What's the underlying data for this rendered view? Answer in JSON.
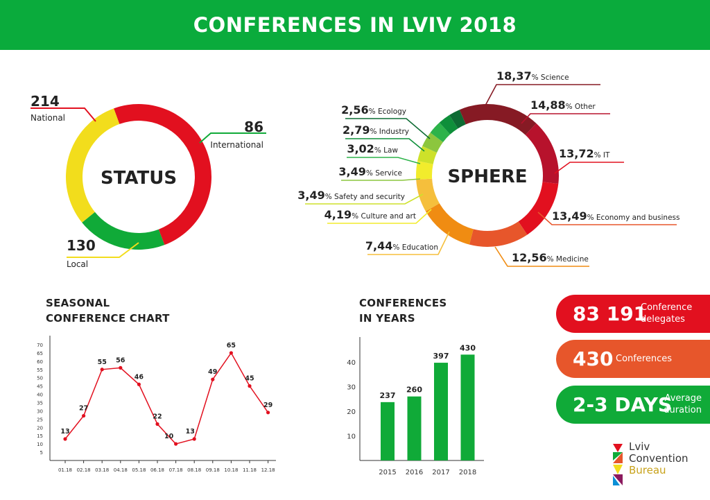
{
  "header": {
    "title": "CONFERENCES IN LVIV 2018"
  },
  "colors": {
    "header_green": "#0aab3c",
    "red": "#e2101f",
    "green": "#10aa38",
    "yellow": "#f2dd1c",
    "orange": "#e7562b"
  },
  "chart_data": [
    {
      "type": "pie",
      "title": "STATUS",
      "slices": [
        {
          "value": "214",
          "label": "National",
          "count": 214,
          "color": "#e2101f"
        },
        {
          "value": "86",
          "label": "International",
          "count": 86,
          "color": "#10aa38"
        },
        {
          "value": "130",
          "label": "Local",
          "count": 130,
          "color": "#f2dd1c"
        }
      ]
    },
    {
      "type": "pie",
      "title": "SPHERE",
      "slices": [
        {
          "value": "18,37",
          "suffix": "% Science",
          "pct": 18.37,
          "color": "#861a24"
        },
        {
          "value": "14,88",
          "suffix": "% Other",
          "pct": 14.88,
          "color": "#b7122c"
        },
        {
          "value": "13,72",
          "suffix": "% IT",
          "pct": 13.72,
          "color": "#e2101f"
        },
        {
          "value": "13,49",
          "suffix": "% Economy and business",
          "pct": 13.49,
          "color": "#e7562b"
        },
        {
          "value": "12,56",
          "suffix": "% Medicine",
          "pct": 12.56,
          "color": "#f08c12"
        },
        {
          "value": "7,44",
          "suffix": "% Education",
          "pct": 7.44,
          "color": "#f5bf3c"
        },
        {
          "value": "4,19",
          "suffix": "% Culture and art",
          "pct": 4.19,
          "color": "#f2ec2c"
        },
        {
          "value": "3,49",
          "suffix": "% Safety and security",
          "pct": 3.49,
          "color": "#cde12a"
        },
        {
          "value": "3,49",
          "suffix": "% Service",
          "pct": 3.49,
          "color": "#8cc63e"
        },
        {
          "value": "3,02",
          "suffix": "% Law",
          "pct": 3.02,
          "color": "#2db34a"
        },
        {
          "value": "2,79",
          "suffix": "% Industry",
          "pct": 2.79,
          "color": "#0e8f3a"
        },
        {
          "value": "2,56",
          "suffix": "% Ecology",
          "pct": 2.56,
          "color": "#0d6b33"
        }
      ]
    },
    {
      "type": "line",
      "title": "SEASONAL\nCONFERENCE CHART",
      "x": [
        "01.18",
        "02.18",
        "03.18",
        "04.18",
        "05.18",
        "06.18",
        "07.18",
        "08.18",
        "09.18",
        "10.18",
        "11.18",
        "12.18"
      ],
      "values": [
        13,
        27,
        55,
        56,
        46,
        22,
        10,
        13,
        49,
        65,
        45,
        29
      ],
      "yticks": [
        5,
        10,
        15,
        20,
        25,
        30,
        35,
        40,
        45,
        50,
        55,
        60,
        65,
        70
      ],
      "ylim": [
        0,
        72
      ],
      "color": "#e2101f"
    },
    {
      "type": "bar",
      "title": "CONFERENCES\nIN YEARS",
      "categories": [
        "2015",
        "2016",
        "2017",
        "2018"
      ],
      "values": [
        237,
        260,
        397,
        430
      ],
      "yticks": [
        "10",
        "20",
        "30",
        "40"
      ],
      "ylim": [
        0,
        480
      ],
      "color": "#10aa38"
    }
  ],
  "stats": [
    {
      "value": "83 191",
      "label": "Conference\ndelegates",
      "color": "#e2101f"
    },
    {
      "value": "430",
      "label": "Conferences",
      "color": "#e7562b"
    },
    {
      "value": "2-3 DAYS",
      "label": "Average\nduration",
      "color": "#10aa38"
    }
  ],
  "logo": {
    "lines": [
      "Lviv",
      "Convention",
      "Bureau"
    ]
  }
}
